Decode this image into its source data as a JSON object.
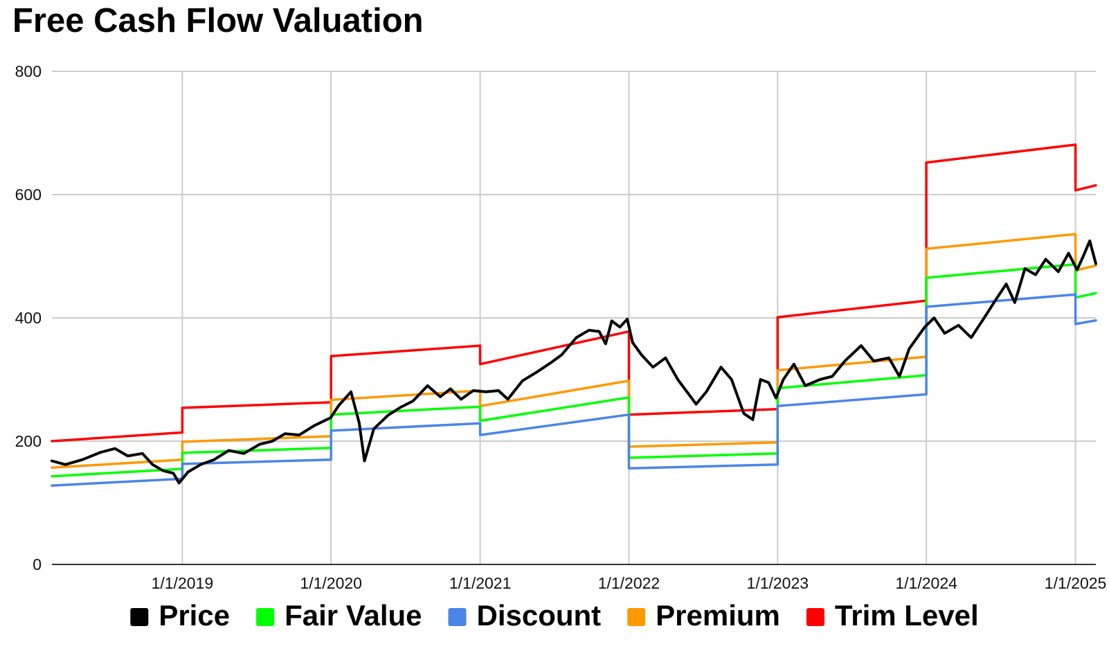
{
  "chart_data": {
    "type": "line",
    "title": "Free Cash Flow Valuation",
    "xlabel": "",
    "ylabel": "",
    "x_range": [
      "2018-02-15",
      "2025-02-20"
    ],
    "ylim": [
      0,
      800
    ],
    "y_ticks": [
      0,
      200,
      400,
      600,
      800
    ],
    "y_tick_labels": [
      "0",
      "200",
      "400",
      "600",
      "800"
    ],
    "x_ticks": [
      "2019-01-01",
      "2020-01-01",
      "2021-01-01",
      "2022-01-01",
      "2023-01-01",
      "2024-01-01",
      "2025-01-01"
    ],
    "x_tick_labels": [
      "1/1/2019",
      "1/1/2020",
      "1/1/2021",
      "1/1/2022",
      "1/1/2023",
      "1/1/2024",
      "1/1/2025"
    ],
    "grid": true,
    "legend_position": "bottom",
    "series": [
      {
        "name": "Price",
        "color": "#000000",
        "points": [
          [
            "2018-02-15",
            168
          ],
          [
            "2018-03-20",
            162
          ],
          [
            "2018-05-01",
            170
          ],
          [
            "2018-06-15",
            182
          ],
          [
            "2018-07-20",
            188
          ],
          [
            "2018-08-20",
            176
          ],
          [
            "2018-09-25",
            180
          ],
          [
            "2018-10-20",
            162
          ],
          [
            "2018-11-15",
            152
          ],
          [
            "2018-12-10",
            148
          ],
          [
            "2018-12-24",
            132
          ],
          [
            "2019-01-15",
            150
          ],
          [
            "2019-02-15",
            162
          ],
          [
            "2019-03-20",
            170
          ],
          [
            "2019-04-25",
            185
          ],
          [
            "2019-06-01",
            180
          ],
          [
            "2019-07-10",
            195
          ],
          [
            "2019-08-10",
            200
          ],
          [
            "2019-09-10",
            212
          ],
          [
            "2019-10-15",
            210
          ],
          [
            "2019-11-20",
            225
          ],
          [
            "2019-12-31",
            238
          ],
          [
            "2020-01-20",
            258
          ],
          [
            "2020-02-19",
            280
          ],
          [
            "2020-03-10",
            230
          ],
          [
            "2020-03-23",
            168
          ],
          [
            "2020-04-15",
            220
          ],
          [
            "2020-05-20",
            242
          ],
          [
            "2020-06-20",
            255
          ],
          [
            "2020-07-20",
            265
          ],
          [
            "2020-08-25",
            290
          ],
          [
            "2020-09-25",
            272
          ],
          [
            "2020-10-20",
            285
          ],
          [
            "2020-11-15",
            268
          ],
          [
            "2020-12-15",
            282
          ],
          [
            "2021-01-15",
            280
          ],
          [
            "2021-02-15",
            282
          ],
          [
            "2021-03-10",
            268
          ],
          [
            "2021-04-15",
            298
          ],
          [
            "2021-05-20",
            312
          ],
          [
            "2021-06-25",
            328
          ],
          [
            "2021-07-20",
            340
          ],
          [
            "2021-08-25",
            368
          ],
          [
            "2021-09-25",
            380
          ],
          [
            "2021-10-20",
            378
          ],
          [
            "2021-11-05",
            358
          ],
          [
            "2021-11-20",
            395
          ],
          [
            "2021-12-10",
            385
          ],
          [
            "2021-12-28",
            398
          ],
          [
            "2022-01-10",
            360
          ],
          [
            "2022-02-01",
            340
          ],
          [
            "2022-03-01",
            320
          ],
          [
            "2022-04-01",
            335
          ],
          [
            "2022-05-01",
            300
          ],
          [
            "2022-06-15",
            260
          ],
          [
            "2022-07-10",
            280
          ],
          [
            "2022-08-15",
            320
          ],
          [
            "2022-09-10",
            300
          ],
          [
            "2022-10-10",
            245
          ],
          [
            "2022-11-01",
            235
          ],
          [
            "2022-11-20",
            300
          ],
          [
            "2022-12-10",
            295
          ],
          [
            "2022-12-28",
            270
          ],
          [
            "2023-01-15",
            300
          ],
          [
            "2023-02-10",
            325
          ],
          [
            "2023-03-10",
            290
          ],
          [
            "2023-04-15",
            300
          ],
          [
            "2023-05-15",
            305
          ],
          [
            "2023-06-15",
            330
          ],
          [
            "2023-07-25",
            355
          ],
          [
            "2023-08-25",
            330
          ],
          [
            "2023-10-01",
            335
          ],
          [
            "2023-10-27",
            305
          ],
          [
            "2023-11-20",
            350
          ],
          [
            "2023-12-28",
            385
          ],
          [
            "2024-01-20",
            400
          ],
          [
            "2024-02-15",
            375
          ],
          [
            "2024-03-20",
            388
          ],
          [
            "2024-04-20",
            368
          ],
          [
            "2024-05-20",
            398
          ],
          [
            "2024-06-20",
            430
          ],
          [
            "2024-07-15",
            455
          ],
          [
            "2024-08-05",
            425
          ],
          [
            "2024-08-30",
            480
          ],
          [
            "2024-09-25",
            470
          ],
          [
            "2024-10-20",
            495
          ],
          [
            "2024-11-20",
            475
          ],
          [
            "2024-12-15",
            505
          ],
          [
            "2025-01-05",
            478
          ],
          [
            "2025-01-20",
            500
          ],
          [
            "2025-02-05",
            525
          ],
          [
            "2025-02-20",
            488
          ]
        ]
      },
      {
        "name": "Fair Value",
        "color": "#00ff00",
        "points": [
          [
            "2018-02-15",
            143
          ],
          [
            "2019-01-01",
            155
          ],
          [
            "2019-01-01",
            181
          ],
          [
            "2020-01-01",
            189
          ],
          [
            "2020-01-01",
            243
          ],
          [
            "2021-01-01",
            256
          ],
          [
            "2021-01-01",
            233
          ],
          [
            "2022-01-01",
            271
          ],
          [
            "2022-01-01",
            173
          ],
          [
            "2023-01-01",
            180
          ],
          [
            "2023-01-01",
            286
          ],
          [
            "2024-01-01",
            307
          ],
          [
            "2024-01-01",
            465
          ],
          [
            "2025-01-01",
            487
          ],
          [
            "2025-01-01",
            433
          ],
          [
            "2025-02-20",
            440
          ]
        ]
      },
      {
        "name": "Discount",
        "color": "#4a86e8",
        "points": [
          [
            "2018-02-15",
            128
          ],
          [
            "2019-01-01",
            139
          ],
          [
            "2019-01-01",
            163
          ],
          [
            "2020-01-01",
            170
          ],
          [
            "2020-01-01",
            217
          ],
          [
            "2021-01-01",
            229
          ],
          [
            "2021-01-01",
            210
          ],
          [
            "2022-01-01",
            243
          ],
          [
            "2022-01-01",
            156
          ],
          [
            "2023-01-01",
            162
          ],
          [
            "2023-01-01",
            257
          ],
          [
            "2024-01-01",
            276
          ],
          [
            "2024-01-01",
            418
          ],
          [
            "2025-01-01",
            438
          ],
          [
            "2025-01-01",
            390
          ],
          [
            "2025-02-20",
            396
          ]
        ]
      },
      {
        "name": "Premium",
        "color": "#ff9900",
        "points": [
          [
            "2018-02-15",
            157
          ],
          [
            "2019-01-01",
            170
          ],
          [
            "2019-01-01",
            199
          ],
          [
            "2020-01-01",
            208
          ],
          [
            "2020-01-01",
            267
          ],
          [
            "2021-01-01",
            282
          ],
          [
            "2021-01-01",
            257
          ],
          [
            "2022-01-01",
            298
          ],
          [
            "2022-01-01",
            191
          ],
          [
            "2023-01-01",
            198
          ],
          [
            "2023-01-01",
            315
          ],
          [
            "2024-01-01",
            337
          ],
          [
            "2024-01-01",
            512
          ],
          [
            "2025-01-01",
            536
          ],
          [
            "2025-01-01",
            477
          ],
          [
            "2025-02-20",
            485
          ]
        ]
      },
      {
        "name": "Trim Level",
        "color": "#ff0000",
        "points": [
          [
            "2018-02-15",
            200
          ],
          [
            "2019-01-01",
            214
          ],
          [
            "2019-01-01",
            254
          ],
          [
            "2020-01-01",
            263
          ],
          [
            "2020-01-01",
            338
          ],
          [
            "2021-01-01",
            355
          ],
          [
            "2021-01-01",
            325
          ],
          [
            "2022-01-01",
            378
          ],
          [
            "2022-01-01",
            243
          ],
          [
            "2023-01-01",
            252
          ],
          [
            "2023-01-01",
            401
          ],
          [
            "2024-01-01",
            428
          ],
          [
            "2024-01-01",
            652
          ],
          [
            "2025-01-01",
            681
          ],
          [
            "2025-01-01",
            607
          ],
          [
            "2025-02-20",
            615
          ]
        ]
      }
    ]
  }
}
